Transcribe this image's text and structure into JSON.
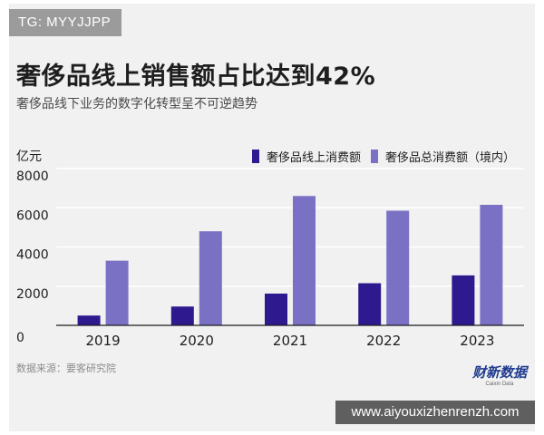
{
  "watermark_tag": "TG: MYYJJPP",
  "source": "数据来源：要客研究院",
  "logo": {
    "main": "财新数据",
    "sub": "Caixin Data"
  },
  "url_bar": "www.aiyouxizhenrenzh.com",
  "colors": {
    "online": "#2e1a8e",
    "total": "#7b71c4",
    "panel": "#f1f1f1",
    "grid": "#ffffff",
    "axis": "#1e1e1e"
  },
  "chart_data": {
    "type": "bar",
    "title": "奢侈品线上销售额占比达到42%",
    "subtitle": "奢侈品线下业务的数字化转型呈不可逆趋势",
    "ylabel": "亿元",
    "ylim": [
      0,
      8000
    ],
    "yticks": [
      "8000",
      "6000",
      "4000",
      "2000",
      "0"
    ],
    "ytick_values": [
      8000,
      6000,
      4000,
      2000,
      0
    ],
    "categories": [
      "2019",
      "2020",
      "2021",
      "2022",
      "2023"
    ],
    "series": [
      {
        "name": "奢侈品线上消费额",
        "values": [
          500,
          960,
          1620,
          2150,
          2550
        ]
      },
      {
        "name": "奢侈品总消费额（境内）",
        "values": [
          3300,
          4800,
          6600,
          5850,
          6150
        ]
      }
    ],
    "legend": "top-right",
    "grid": true
  }
}
